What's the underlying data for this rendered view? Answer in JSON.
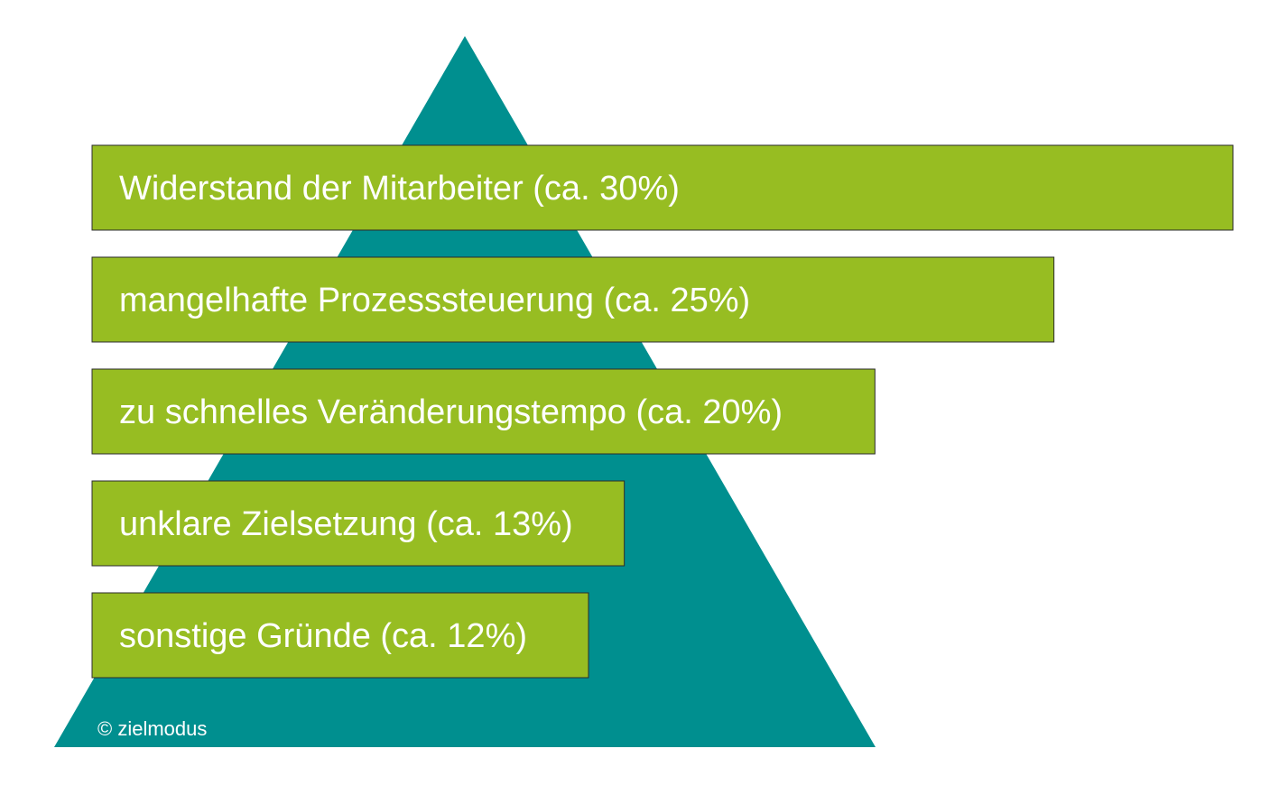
{
  "chart_data": {
    "type": "bar",
    "orientation": "horizontal",
    "background_shape": "pyramid",
    "categories": [
      "Widerstand der Mitarbeiter",
      "mangelhafte Prozesssteuerung",
      "zu schnelles Veränderungstempo",
      "unklare Zielsetzung",
      "sonstige Gründe"
    ],
    "values": [
      30,
      25,
      20,
      13,
      12
    ],
    "unit": "%",
    "labels": [
      "Widerstand der Mitarbeiter  (ca. 30%)",
      "mangelhafte Prozesssteuerung  (ca. 25%)",
      "zu schnelles Veränderungstempo  (ca. 20%)",
      "unklare Zielsetzung  (ca. 13%)",
      "sonstige Gründe  (ca. 12%)"
    ],
    "copyright": "© zielmodus",
    "colors": {
      "pyramid": "#008f8f",
      "bar": "#97bd22",
      "bar_border": "#2b2b2b",
      "text": "#ffffff"
    }
  }
}
